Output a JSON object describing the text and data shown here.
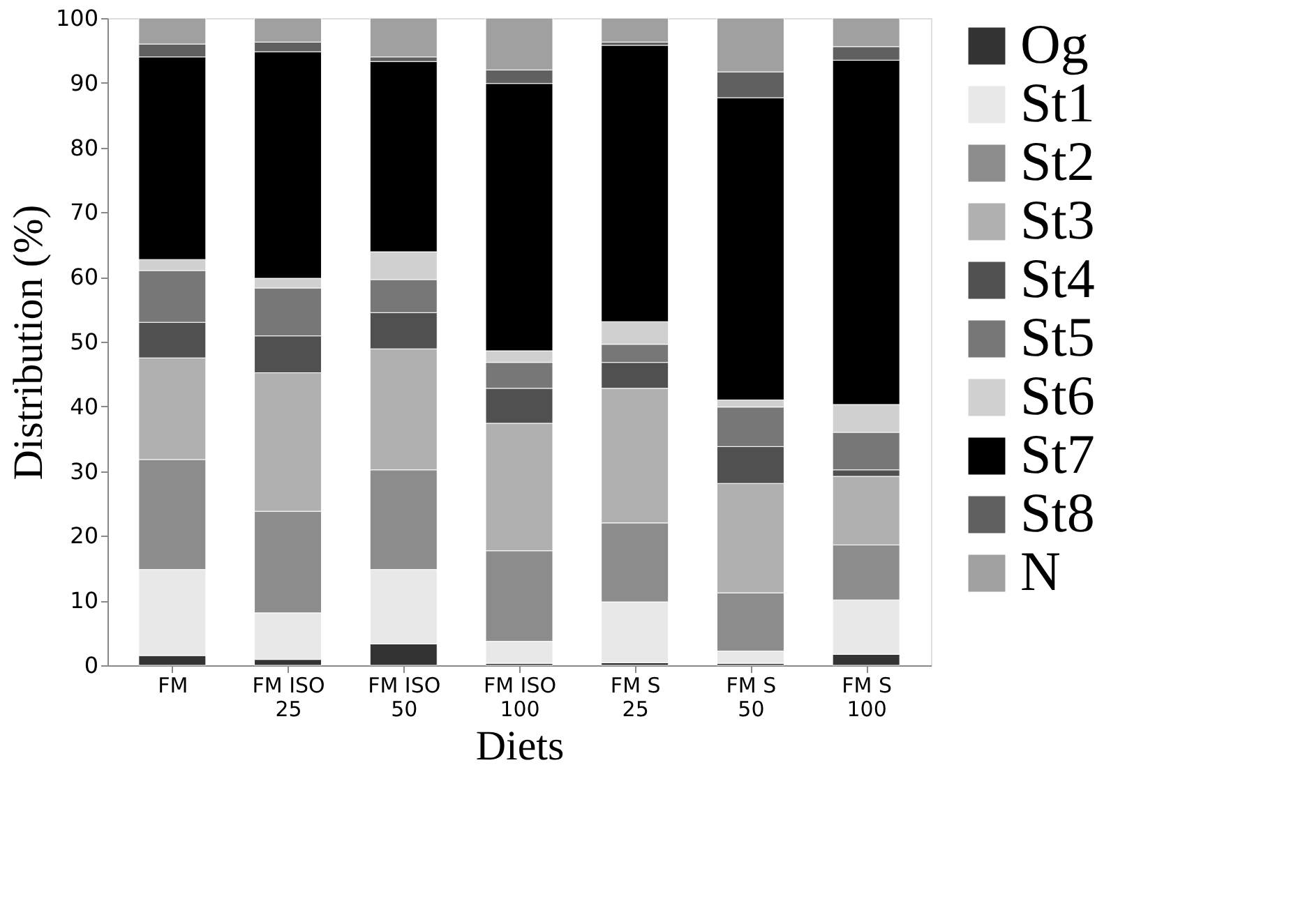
{
  "chart_data": {
    "type": "bar",
    "stacked": true,
    "xlabel": "Diets",
    "ylabel": "Distribution (%)",
    "categories": [
      "FM",
      "FM ISO 25",
      "FM ISO 50",
      "FM ISO 100",
      "FM S 25",
      "FM S 50",
      "FM S 100"
    ],
    "ylim": [
      0,
      100
    ],
    "yticks": [
      0,
      10,
      20,
      30,
      40,
      50,
      60,
      70,
      80,
      90,
      100
    ],
    "grid": false,
    "legend": "right",
    "series": [
      {
        "name": "Og",
        "color": "#333333",
        "values": [
          1.5,
          0.9,
          3.3,
          0.3,
          0.4,
          0.3,
          1.7
        ]
      },
      {
        "name": "St1",
        "color": "#e8e8e8",
        "values": [
          13.3,
          7.2,
          11.5,
          3.4,
          9.4,
          1.9,
          8.4
        ]
      },
      {
        "name": "St2",
        "color": "#8c8c8c",
        "values": [
          17,
          15.7,
          15.4,
          14,
          12.2,
          9,
          8.5
        ]
      },
      {
        "name": "St3",
        "color": "#b0b0b0",
        "values": [
          15.7,
          21.4,
          18.7,
          19.7,
          20.8,
          16.9,
          10.6
        ]
      },
      {
        "name": "St4",
        "color": "#505050",
        "values": [
          5.5,
          5.7,
          5.6,
          5.4,
          4,
          5.7,
          1
        ]
      },
      {
        "name": "St5",
        "color": "#777777",
        "values": [
          8,
          7.4,
          5.1,
          4,
          2.8,
          6.1,
          5.8
        ]
      },
      {
        "name": "St6",
        "color": "#d0d0d0",
        "values": [
          1.7,
          1.5,
          4.3,
          1.8,
          3.5,
          1.1,
          4.3
        ]
      },
      {
        "name": "St7",
        "color": "#000000",
        "values": [
          31.3,
          35,
          29.4,
          41.3,
          42.7,
          46.7,
          53.2
        ]
      },
      {
        "name": "St8",
        "color": "#606060",
        "values": [
          2,
          1.5,
          0.7,
          2.1,
          0.5,
          4,
          2.1
        ]
      },
      {
        "name": "N",
        "color": "#a0a0a0",
        "values": [
          4,
          3.7,
          6,
          8,
          3.7,
          8.3,
          4.4
        ]
      }
    ]
  }
}
